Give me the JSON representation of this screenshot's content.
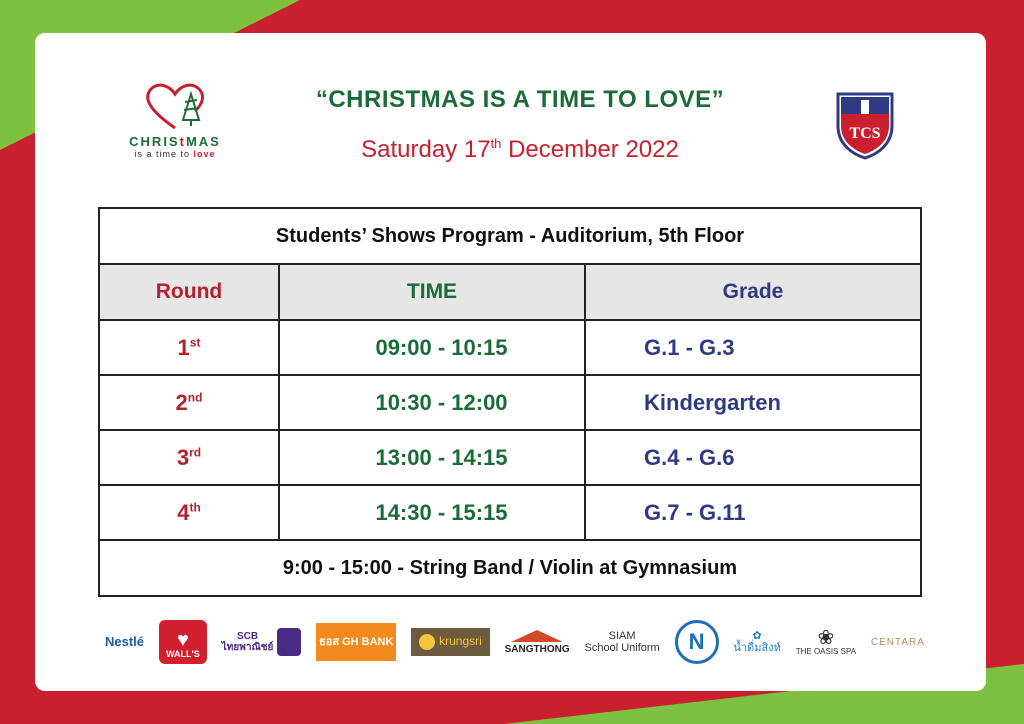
{
  "event": {
    "title": "“CHRISTMAS IS A TIME TO LOVE”",
    "date_prefix": "Saturday 17",
    "date_suffix": "th",
    "date_rest": " December 2022"
  },
  "logo_left": {
    "word_a": "CHRIS",
    "word_t": "t",
    "word_b": "MAS",
    "sub": "is a time to ",
    "sub_love": "love"
  },
  "logo_right": {
    "letters": "TCS"
  },
  "schedule": {
    "caption": "Students’ Shows Program  -  Auditorium, 5th Floor",
    "headers": {
      "round": "Round",
      "time": "TIME",
      "grade": "Grade"
    },
    "rows": [
      {
        "round": "1",
        "suffix": "st",
        "time": "09:00 - 10:15",
        "grade": "G.1 - G.3"
      },
      {
        "round": "2",
        "suffix": "nd",
        "time": "10:30 - 12:00",
        "grade": "Kindergarten"
      },
      {
        "round": "3",
        "suffix": "rd",
        "time": "13:00 - 14:15",
        "grade": "G.4 - G.6"
      },
      {
        "round": "4",
        "suffix": "th",
        "time": "14:30 - 15:15",
        "grade": "G.7 - G.11"
      }
    ],
    "footer": "9:00 - 15:00 - String Band / Violin at Gymnasium"
  },
  "sponsors": {
    "nestle": "Nestlé",
    "walls": "WALL'S",
    "scb_a": "SCB",
    "scb_b": "ไทยพาณิชย์",
    "ghb": "ธอส GH BANK",
    "krungsri": "krungsri",
    "sangthong": "SANGTHONG",
    "siam_a": "SIAM",
    "siam_b": "School Uniform",
    "n": "N",
    "water": "น้ำดื่มสิงห์",
    "oasis": "THE OASIS SPA",
    "centara": "CENTARA"
  },
  "colors": {
    "background_red": "#c8202f",
    "background_green": "#7dc142",
    "title_green": "#1a6b37",
    "round_red": "#b5202e",
    "grade_blue": "#2e3a82",
    "header_gray": "#e6e6e6"
  },
  "icons": [
    "heart-tree-icon",
    "school-crest-icon"
  ]
}
